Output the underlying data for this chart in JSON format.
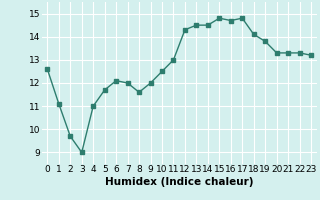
{
  "x": [
    0,
    1,
    2,
    3,
    4,
    5,
    6,
    7,
    8,
    9,
    10,
    11,
    12,
    13,
    14,
    15,
    16,
    17,
    18,
    19,
    20,
    21,
    22,
    23
  ],
  "y": [
    12.6,
    11.1,
    9.7,
    9.0,
    11.0,
    11.7,
    12.1,
    12.0,
    11.6,
    12.0,
    12.5,
    13.0,
    14.3,
    14.5,
    14.5,
    14.8,
    14.7,
    14.8,
    14.1,
    13.8,
    13.3,
    13.3,
    13.3,
    13.2
  ],
  "xlabel": "Humidex (Indice chaleur)",
  "xlim": [
    -0.5,
    23.5
  ],
  "ylim": [
    8.5,
    15.5
  ],
  "yticks": [
    9,
    10,
    11,
    12,
    13,
    14,
    15
  ],
  "xticks": [
    0,
    1,
    2,
    3,
    4,
    5,
    6,
    7,
    8,
    9,
    10,
    11,
    12,
    13,
    14,
    15,
    16,
    17,
    18,
    19,
    20,
    21,
    22,
    23
  ],
  "line_color": "#2e7d6e",
  "marker_color": "#2e7d6e",
  "bg_color": "#d4f0ee",
  "grid_color": "#ffffff",
  "tick_label_fontsize": 6.5,
  "xlabel_fontsize": 7.5
}
